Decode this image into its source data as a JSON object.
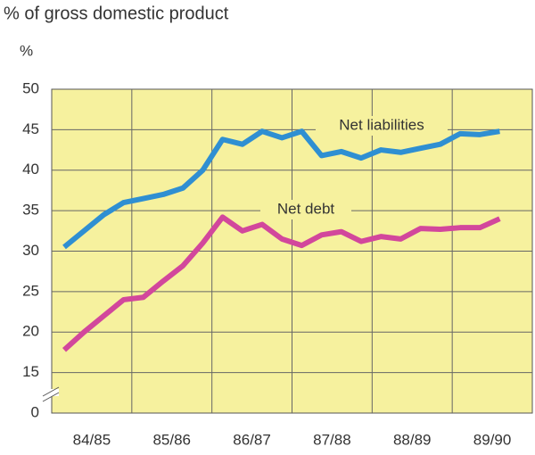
{
  "chart_data": {
    "type": "line",
    "title": "% of gross domestic product",
    "y_unit_label": "%",
    "x_tick_labels": [
      "84/85",
      "85/86",
      "86/87",
      "87/88",
      "88/89",
      "89/90"
    ],
    "series": [
      {
        "name": "Net liabilities",
        "color": "#2f8fd2",
        "values": [
          30.5,
          32.5,
          34.5,
          36,
          36.5,
          37,
          37.8,
          40,
          43.8,
          43.2,
          44.8,
          44,
          44.8,
          41.8,
          42.3,
          41.5,
          42.5,
          42.2,
          42.7,
          43.2,
          44.5,
          44.4,
          44.8
        ]
      },
      {
        "name": "Net debt",
        "color": "#d2479c",
        "values": [
          17.8,
          20,
          22,
          24,
          24.3,
          26.3,
          28.2,
          31,
          34.2,
          32.5,
          33.3,
          31.5,
          30.7,
          32,
          32.4,
          31.2,
          31.8,
          31.5,
          32.8,
          32.7,
          32.9,
          32.9,
          34
        ]
      }
    ],
    "ylim": [
      0,
      50
    ],
    "ybreak": [
      0,
      10
    ],
    "yticks": [
      0,
      15,
      20,
      25,
      30,
      35,
      40,
      45,
      50
    ],
    "grid": true,
    "background": "#f6f19e"
  }
}
